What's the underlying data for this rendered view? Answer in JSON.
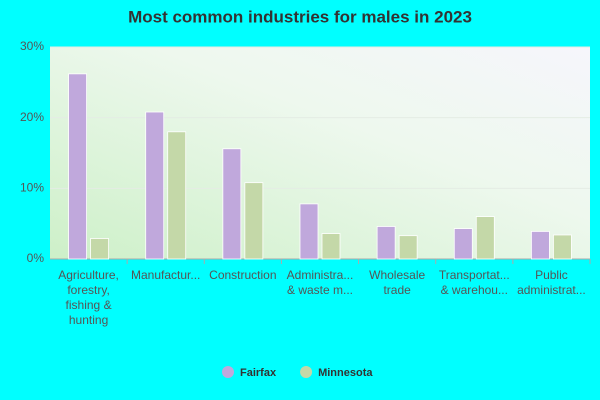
{
  "chart_data": {
    "type": "bar",
    "title": "Most common industries for males in 2023",
    "categories": [
      "Agriculture, forestry, fishing & hunting",
      "Manufactur...",
      "Construction",
      "Administra... & waste m...",
      "Wholesale trade",
      "Transportat... & warehou...",
      "Public administrat..."
    ],
    "series": [
      {
        "name": "Fairfax",
        "color": "#c0a8dc",
        "values": [
          26.2,
          20.8,
          15.6,
          7.8,
          4.6,
          4.3,
          3.9
        ]
      },
      {
        "name": "Minnesota",
        "color": "#c4d8a8",
        "values": [
          2.9,
          18.0,
          10.8,
          3.6,
          3.3,
          6.0,
          3.4
        ]
      }
    ],
    "ylim": [
      0,
      30
    ],
    "yticks": [
      {
        "value": 0,
        "label": "0%"
      },
      {
        "value": 10,
        "label": "10%"
      },
      {
        "value": 20,
        "label": "20%"
      },
      {
        "value": 30,
        "label": "30%"
      }
    ],
    "grid": true
  }
}
